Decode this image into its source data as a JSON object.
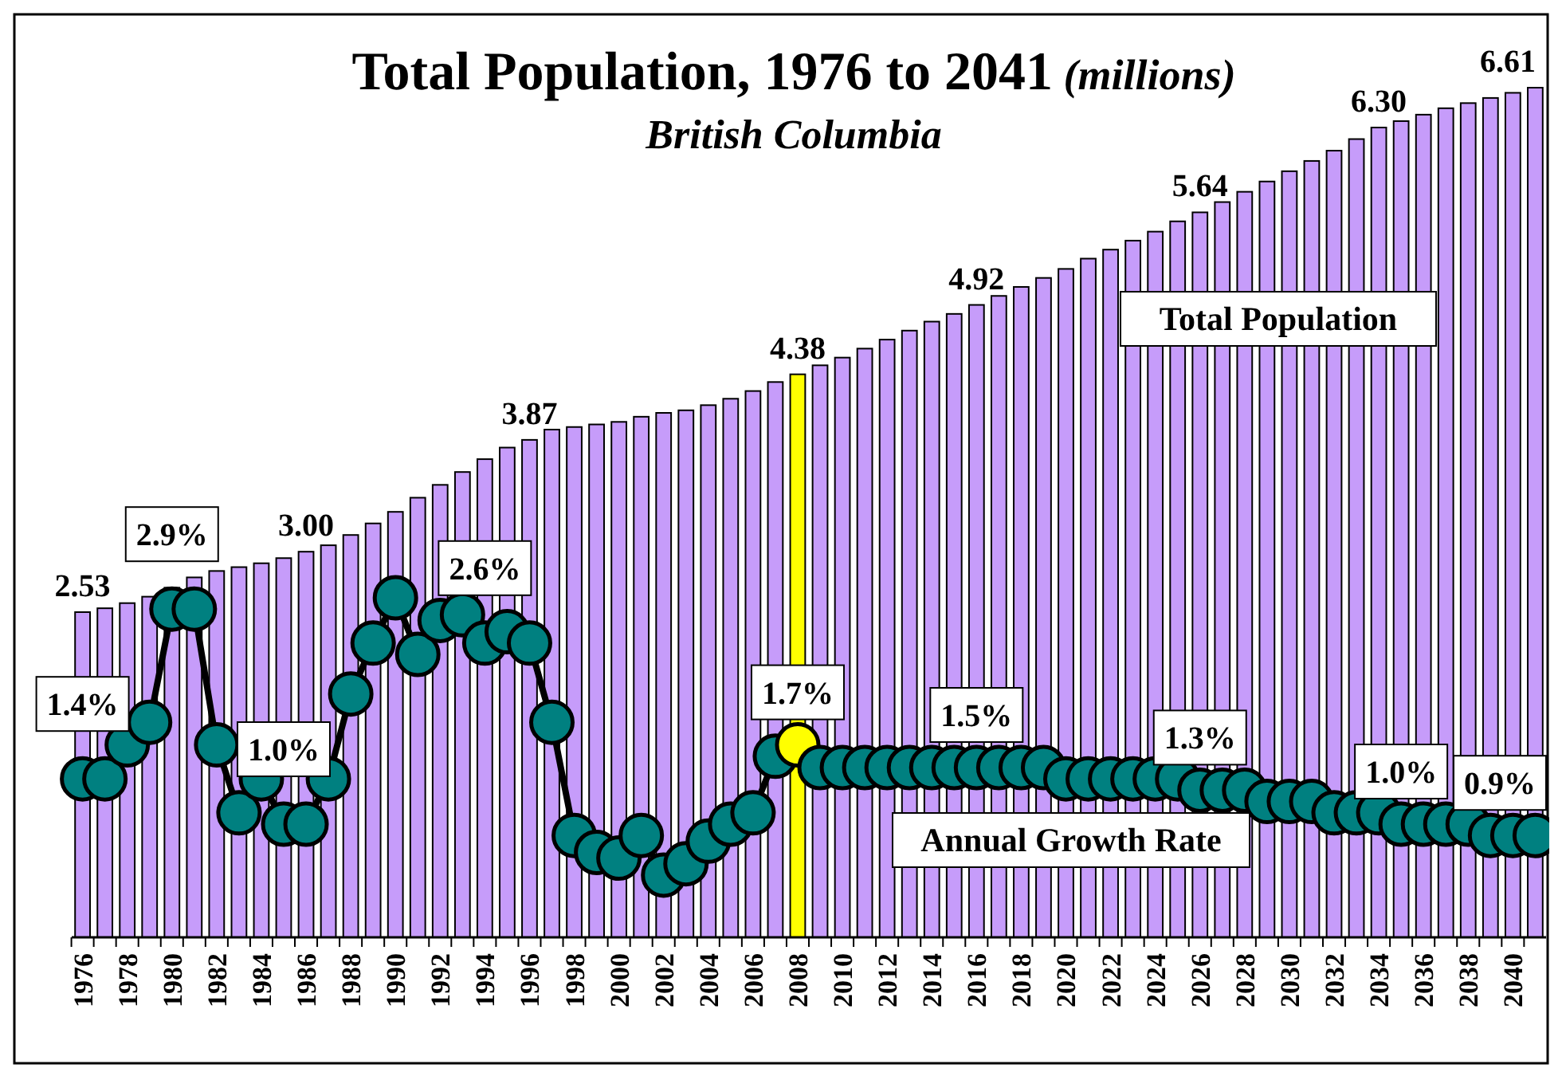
{
  "chart_data": {
    "type": "bar",
    "title": "Total Population, 1976 to 2041 (millions)",
    "subtitle": "British Columbia",
    "categories": [
      "1976",
      null,
      "1978",
      null,
      "1980",
      null,
      "1982",
      null,
      "1984",
      null,
      "1986",
      null,
      "1988",
      null,
      "1990",
      null,
      "1992",
      null,
      "1994",
      null,
      "1996",
      null,
      "1998",
      null,
      "2000",
      null,
      "2002",
      null,
      "2004",
      null,
      "2006",
      null,
      "2008",
      null,
      "2010",
      null,
      "2012",
      null,
      "2014",
      null,
      "2016",
      null,
      "2018",
      null,
      "2020",
      null,
      "2022",
      null,
      "2024",
      null,
      "2026",
      null,
      "2028",
      null,
      "2030",
      null,
      "2032",
      null,
      "2034",
      null,
      "2036",
      null,
      "2038",
      null,
      "2040",
      null
    ],
    "series": [
      {
        "name": "Total Population",
        "colors": [
          "#c69cfa",
          "#c69cfa",
          "#c69cfa",
          "#c69cfa",
          "#c69cfa",
          "#c69cfa",
          "#c69cfa",
          "#c69cfa",
          "#c69cfa",
          "#c69cfa",
          "#c69cfa",
          "#c69cfa",
          "#c69cfa",
          "#c69cfa",
          "#c69cfa",
          "#c69cfa",
          "#c69cfa",
          "#c69cfa",
          "#c69cfa",
          "#c69cfa",
          "#c69cfa",
          "#c69cfa",
          "#c69cfa",
          "#c69cfa",
          "#c69cfa",
          "#c69cfa",
          "#c69cfa",
          "#c69cfa",
          "#c69cfa",
          "#c69cfa",
          "#c69cfa",
          "#c69cfa",
          "#ffff00",
          "#c69cfa",
          "#c69cfa",
          "#c69cfa",
          "#c69cfa",
          "#c69cfa",
          "#c69cfa",
          "#c69cfa",
          "#c69cfa",
          "#c69cfa",
          "#c69cfa",
          "#c69cfa",
          "#c69cfa",
          "#c69cfa",
          "#c69cfa",
          "#c69cfa",
          "#c69cfa",
          "#c69cfa",
          "#c69cfa",
          "#c69cfa",
          "#c69cfa",
          "#c69cfa",
          "#c69cfa",
          "#c69cfa",
          "#c69cfa",
          "#c69cfa",
          "#c69cfa",
          "#c69cfa",
          "#c69cfa",
          "#c69cfa",
          "#c69cfa",
          "#c69cfa",
          "#c69cfa",
          "#c69cfa"
        ],
        "values": [
          2.53,
          2.56,
          2.6,
          2.65,
          2.72,
          2.8,
          2.85,
          2.88,
          2.91,
          2.95,
          3.0,
          3.05,
          3.13,
          3.22,
          3.31,
          3.42,
          3.52,
          3.62,
          3.72,
          3.81,
          3.87,
          3.95,
          3.97,
          3.99,
          4.01,
          4.05,
          4.08,
          4.1,
          4.14,
          4.19,
          4.25,
          4.32,
          4.38,
          4.45,
          4.51,
          4.58,
          4.65,
          4.72,
          4.79,
          4.85,
          4.92,
          4.99,
          5.06,
          5.13,
          5.2,
          5.28,
          5.35,
          5.42,
          5.49,
          5.57,
          5.64,
          5.72,
          5.8,
          5.88,
          5.96,
          6.04,
          6.12,
          6.21,
          6.3,
          6.35,
          6.4,
          6.45,
          6.49,
          6.53,
          6.57,
          6.61
        ],
        "value_labels": [
          "2.53",
          null,
          null,
          null,
          null,
          null,
          null,
          null,
          null,
          null,
          "3.00",
          null,
          null,
          null,
          null,
          null,
          null,
          null,
          null,
          null,
          "3.87",
          null,
          null,
          null,
          null,
          null,
          null,
          null,
          null,
          null,
          null,
          null,
          "4.38",
          null,
          null,
          null,
          null,
          null,
          null,
          null,
          "4.92",
          null,
          null,
          null,
          null,
          null,
          null,
          null,
          null,
          null,
          "5.64",
          null,
          null,
          null,
          null,
          null,
          null,
          null,
          "6.30",
          null,
          null,
          null,
          null,
          null,
          null,
          "6.61"
        ]
      },
      {
        "name": "Annual Growth Rate",
        "type": "line",
        "axis": "y2",
        "colors": [
          "#008080",
          "#008080",
          "#008080",
          "#008080",
          "#008080",
          "#008080",
          "#008080",
          "#008080",
          "#008080",
          "#008080",
          "#008080",
          "#008080",
          "#008080",
          "#008080",
          "#008080",
          "#008080",
          "#008080",
          "#008080",
          "#008080",
          "#008080",
          "#008080",
          "#008080",
          "#008080",
          "#008080",
          "#008080",
          "#008080",
          "#008080",
          "#008080",
          "#008080",
          "#008080",
          "#008080",
          "#008080",
          "#ffff00",
          "#008080",
          "#008080",
          "#008080",
          "#008080",
          "#008080",
          "#008080",
          "#008080",
          "#008080",
          "#008080",
          "#008080",
          "#008080",
          "#008080",
          "#008080",
          "#008080",
          "#008080",
          "#008080",
          "#008080",
          "#008080",
          "#008080",
          "#008080",
          "#008080",
          "#008080",
          "#008080",
          "#008080",
          "#008080",
          "#008080",
          "#008080",
          "#008080",
          "#008080",
          "#008080",
          "#008080",
          "#008080",
          "#008080"
        ],
        "values": [
          1.4,
          1.4,
          1.7,
          1.9,
          2.9,
          2.9,
          1.7,
          1.1,
          1.4,
          1.0,
          1.0,
          1.4,
          2.15,
          2.6,
          3.0,
          2.5,
          2.8,
          2.85,
          2.6,
          2.7,
          2.6,
          1.9,
          0.9,
          0.75,
          0.7,
          0.9,
          0.55,
          0.65,
          0.85,
          1.0,
          1.1,
          1.6,
          1.7,
          1.5,
          1.5,
          1.5,
          1.5,
          1.5,
          1.5,
          1.5,
          1.5,
          1.5,
          1.5,
          1.5,
          1.4,
          1.4,
          1.4,
          1.4,
          1.4,
          1.4,
          1.3,
          1.3,
          1.3,
          1.2,
          1.2,
          1.2,
          1.1,
          1.1,
          1.1,
          1.0,
          1.0,
          1.0,
          1.0,
          0.9,
          0.9,
          0.9
        ],
        "value_labels": [
          "1.4%",
          null,
          null,
          null,
          "2.9%",
          null,
          null,
          null,
          null,
          "1.0%",
          null,
          null,
          null,
          null,
          null,
          null,
          null,
          null,
          "2.6%",
          null,
          null,
          null,
          null,
          null,
          null,
          null,
          null,
          null,
          null,
          null,
          null,
          null,
          "1.7%",
          null,
          null,
          null,
          null,
          null,
          null,
          null,
          "1.5%",
          null,
          null,
          null,
          null,
          null,
          null,
          null,
          null,
          null,
          "1.3%",
          null,
          null,
          null,
          null,
          null,
          null,
          null,
          null,
          "1.0%",
          null,
          null,
          null,
          null,
          null,
          "0.9%"
        ]
      }
    ],
    "tick_labels": "x",
    "marker": "circle"
  }
}
